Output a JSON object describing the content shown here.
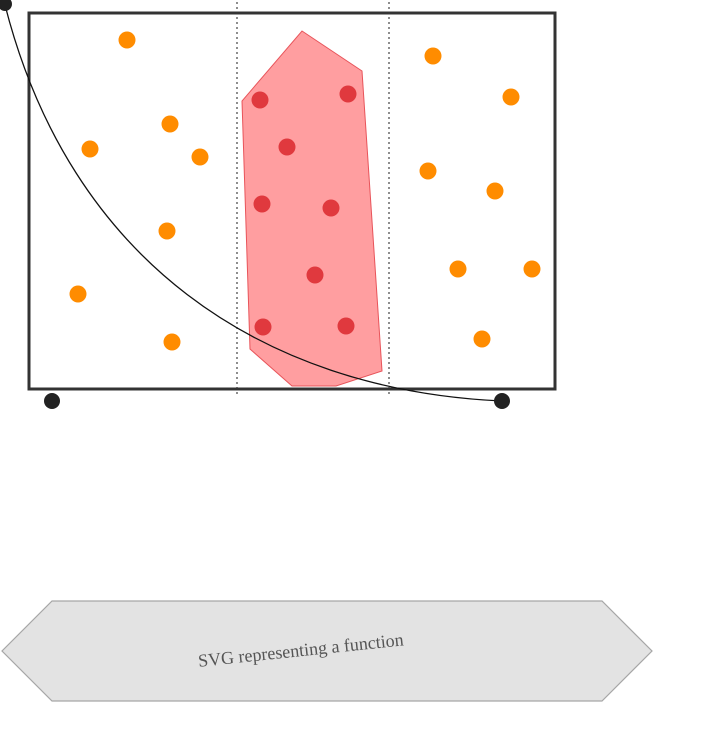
{
  "caption": {
    "text": "SVG representing a function"
  },
  "colors": {
    "frame": "#333333",
    "divider": "#444444",
    "outer_point": "#ff8c00",
    "inner_point": "#e0393e",
    "region_fill": "#ff9ea0",
    "region_stroke": "#e8545a",
    "curve": "#111111",
    "endpoint": "#222222",
    "banner_fill": "#e3e3e3",
    "banner_stroke": "#a6a6a6",
    "caption_text": "#555555"
  }
}
